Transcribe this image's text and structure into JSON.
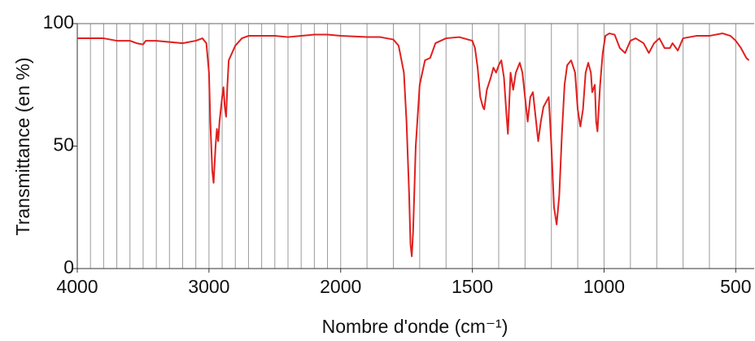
{
  "chart_data": {
    "type": "line",
    "x_label": "Nombre d'onde (cm⁻¹)",
    "y_label": "Transmittance (en %)",
    "xlim": [
      4000,
      430
    ],
    "x_scale_break": 2000,
    "x_scale_ratio": 2,
    "xticks": [
      4000,
      3000,
      2000,
      1500,
      1000,
      500
    ],
    "xgrid": [
      4000,
      3900,
      3800,
      3700,
      3600,
      3500,
      3400,
      3300,
      3200,
      3100,
      3000,
      2900,
      2800,
      2700,
      2600,
      2500,
      2400,
      2300,
      2200,
      2100,
      2000,
      1900,
      1800,
      1700,
      1600,
      1500,
      1400,
      1300,
      1200,
      1100,
      1000,
      900,
      800,
      700,
      600,
      500
    ],
    "ylim": [
      0,
      100
    ],
    "yticks": [
      0,
      50,
      100
    ],
    "color": "#e0201f",
    "x": [
      4000,
      3800,
      3700,
      3600,
      3550,
      3500,
      3480,
      3400,
      3300,
      3200,
      3100,
      3050,
      3020,
      3000,
      2990,
      2975,
      2965,
      2950,
      2940,
      2930,
      2920,
      2900,
      2890,
      2880,
      2870,
      2860,
      2850,
      2800,
      2750,
      2700,
      2600,
      2500,
      2400,
      2300,
      2200,
      2100,
      2000,
      1900,
      1850,
      1800,
      1780,
      1760,
      1750,
      1740,
      1735,
      1730,
      1725,
      1715,
      1700,
      1680,
      1660,
      1640,
      1600,
      1550,
      1500,
      1490,
      1480,
      1470,
      1460,
      1455,
      1445,
      1430,
      1420,
      1410,
      1400,
      1390,
      1380,
      1370,
      1365,
      1355,
      1345,
      1335,
      1320,
      1310,
      1300,
      1290,
      1285,
      1280,
      1270,
      1260,
      1250,
      1240,
      1230,
      1220,
      1210,
      1200,
      1190,
      1180,
      1170,
      1160,
      1150,
      1140,
      1125,
      1110,
      1100,
      1090,
      1080,
      1070,
      1060,
      1050,
      1045,
      1035,
      1030,
      1025,
      1015,
      1005,
      995,
      980,
      960,
      940,
      920,
      900,
      880,
      850,
      830,
      810,
      790,
      770,
      750,
      740,
      720,
      700,
      650,
      600,
      550,
      520,
      500,
      480,
      460,
      450
    ],
    "values": [
      94,
      94,
      93,
      93,
      92,
      91.5,
      93,
      93,
      92.5,
      92,
      93,
      94,
      92,
      80,
      60,
      40,
      35,
      50,
      57,
      52,
      60,
      70,
      74,
      66,
      62,
      75,
      85,
      91,
      94,
      95,
      95,
      95,
      94.5,
      95,
      95.5,
      95.5,
      95,
      94.5,
      94.5,
      93.5,
      91,
      80,
      60,
      30,
      10,
      5,
      15,
      50,
      75,
      85,
      86,
      92,
      94,
      94.5,
      93,
      90,
      82,
      70,
      66,
      65,
      73,
      78,
      82,
      80,
      83,
      85,
      78,
      62,
      55,
      80,
      73,
      80,
      84,
      80,
      70,
      60,
      65,
      70,
      72,
      62,
      52,
      60,
      66,
      68,
      70,
      50,
      25,
      18,
      30,
      55,
      75,
      83,
      85,
      80,
      65,
      58,
      65,
      80,
      84,
      80,
      72,
      75,
      60,
      56,
      75,
      88,
      95,
      96,
      95.5,
      90,
      88,
      93,
      94,
      92,
      88,
      92,
      94,
      90,
      90,
      92,
      89,
      94,
      95,
      95,
      96,
      95,
      93,
      90,
      86,
      85
    ]
  }
}
